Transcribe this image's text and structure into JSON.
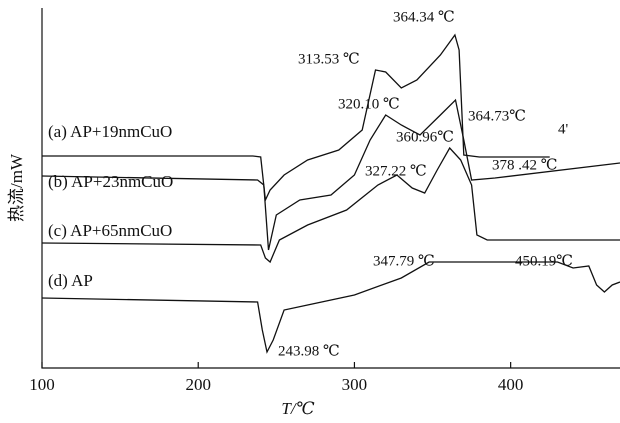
{
  "chart_data": {
    "type": "line",
    "x_label": "T/℃",
    "y_label": "热流/mW",
    "xlim": [
      100,
      470
    ],
    "xticks": [
      100,
      200,
      300,
      400
    ],
    "ylim": [
      0,
      360
    ],
    "series": [
      {
        "name": "(a) AP+19nmCuO",
        "color": "#111111",
        "x": [
          100,
          235,
          240,
          243,
          246,
          255,
          270,
          290,
          305,
          313.5,
          320,
          330,
          340,
          355,
          364.3,
          367,
          370,
          380,
          425
        ],
        "values": [
          212,
          212,
          211,
          168,
          178,
          193,
          208,
          218,
          238,
          298,
          296,
          280,
          288,
          313,
          333,
          318,
          213,
          211,
          211
        ]
      },
      {
        "name": "(b) AP+23nmCuO",
        "color": "#111111",
        "x": [
          100,
          238,
          242,
          245,
          250,
          265,
          285,
          300,
          310,
          320,
          330,
          342,
          355,
          364.7,
          370,
          375,
          390,
          470
        ],
        "values": [
          192,
          188,
          183,
          118,
          153,
          168,
          173,
          193,
          228,
          253,
          243,
          233,
          253,
          268,
          228,
          188,
          190,
          205
        ]
      },
      {
        "name": "(c) AP+65nmCuO",
        "color": "#111111",
        "x": [
          100,
          240,
          243,
          246,
          252,
          270,
          295,
          315,
          327.2,
          337,
          345,
          353,
          361,
          368,
          375,
          378.4,
          385,
          470
        ],
        "values": [
          125,
          123,
          110,
          106,
          128,
          143,
          158,
          183,
          193,
          180,
          175,
          198,
          220,
          208,
          183,
          133,
          128,
          128
        ]
      },
      {
        "name": "(d) AP",
        "color": "#111111",
        "x": [
          100,
          238,
          241,
          244,
          248,
          255,
          270,
          300,
          330,
          347.8,
          370,
          400,
          430,
          440,
          450,
          455,
          460,
          465,
          470
        ],
        "values": [
          70,
          66,
          38,
          16,
          28,
          58,
          63,
          73,
          90,
          106,
          106,
          106,
          106,
          100,
          102,
          83,
          76,
          83,
          86
        ]
      }
    ],
    "annotations": [
      "364.34 ℃",
      "313.53 ℃",
      "320.10 ℃",
      "364.73℃",
      "4'",
      "360.96℃",
      "378 .42 ℃",
      "327.22 ℃",
      "347.79 ℃",
      "450.19℃",
      "243.98 ℃"
    ]
  }
}
